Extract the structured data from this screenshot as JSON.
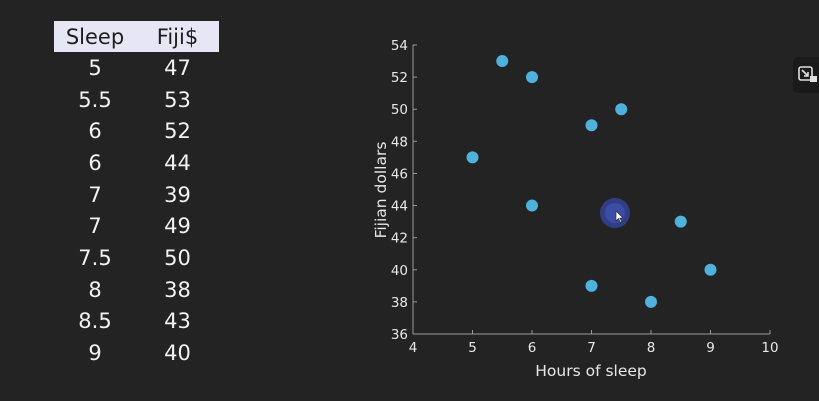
{
  "table": {
    "headers": [
      "Sleep",
      "Fiji$"
    ],
    "rows": [
      [
        "5",
        "47"
      ],
      [
        "5.5",
        "53"
      ],
      [
        "6",
        "52"
      ],
      [
        "6",
        "44"
      ],
      [
        "7",
        "39"
      ],
      [
        "7",
        "49"
      ],
      [
        "7.5",
        "50"
      ],
      [
        "8",
        "38"
      ],
      [
        "8.5",
        "43"
      ],
      [
        "9",
        "40"
      ]
    ]
  },
  "chart_data": {
    "type": "scatter",
    "x": [
      5,
      5.5,
      6,
      6,
      7,
      7,
      7.5,
      8,
      8.5,
      9
    ],
    "y": [
      47,
      53,
      52,
      44,
      39,
      49,
      50,
      38,
      43,
      40
    ],
    "xlabel": "Hours of sleep",
    "ylabel": "Fijian dollars",
    "xlim": [
      4,
      10
    ],
    "ylim": [
      36,
      54
    ],
    "xticks": [
      "4",
      "5",
      "6",
      "7",
      "8",
      "9",
      "10"
    ],
    "yticks": [
      "36",
      "38",
      "40",
      "42",
      "44",
      "46",
      "48",
      "50",
      "52",
      "54"
    ],
    "grid": false,
    "point_color": "#4fb2dc",
    "cursor_highlight_color": "#3a4fa8"
  },
  "icons": {
    "expand": "expand-icon",
    "cursor": "cursor-icon"
  }
}
